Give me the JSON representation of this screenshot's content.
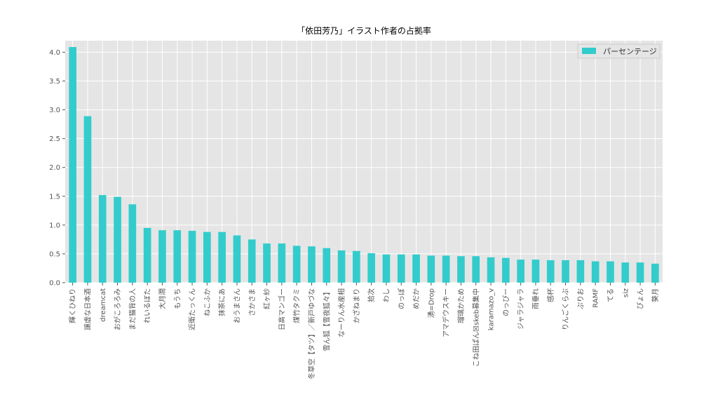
{
  "chart_data": {
    "type": "bar",
    "title": "「依田芳乃」イラスト作者の占拠率",
    "xlabel": "",
    "ylabel": "",
    "ylim": [
      0,
      4.2
    ],
    "yticks": [
      0.0,
      0.5,
      1.0,
      1.5,
      2.0,
      2.5,
      3.0,
      3.5,
      4.0
    ],
    "ytick_labels": [
      "0.0",
      "0.5",
      "1.0",
      "1.5",
      "2.0",
      "2.5",
      "3.0",
      "3.5",
      "4.0"
    ],
    "grid": true,
    "legend_position": "top-right",
    "bar_color": "#33cccc",
    "background_color": "#e5e5e5",
    "categories": [
      "輝くひねり",
      "譲虚な日本酒",
      "dreamcat",
      "おがころろみ",
      "まだ猫背の人",
      "れいるぼた",
      "大月潤",
      "もうち",
      "近衛たっくん",
      "ねこふか",
      "抹茶にあ",
      "おうまさん",
      "さかさま",
      "紅ヶ紗",
      "日高マンゴー",
      "煤竹タクミ",
      "冬草空【タツ】／新戸ゆづな",
      "雪ん狐【雪夜狐々】",
      "なーりん水産相",
      "かざねまり",
      "拾次",
      "わし",
      "のっぽ",
      "めだか",
      "湧=Drop",
      "アマデウスキー",
      "瑠璃かため",
      "こね田ぱん☒skeb募集中",
      "karamazo_v",
      "のっぴー",
      "ジャラジャラ",
      "雨垂れ",
      "感杯",
      "りんごくらぶ",
      "ぷりお",
      "RAMF",
      "てる",
      "siz",
      "ぴょん",
      "葵月"
    ],
    "series": [
      {
        "name": "パーセンテージ",
        "values": [
          4.09,
          2.89,
          1.52,
          1.49,
          1.36,
          0.95,
          0.91,
          0.91,
          0.9,
          0.88,
          0.88,
          0.82,
          0.75,
          0.68,
          0.68,
          0.64,
          0.63,
          0.6,
          0.56,
          0.55,
          0.51,
          0.49,
          0.49,
          0.49,
          0.47,
          0.47,
          0.46,
          0.46,
          0.44,
          0.43,
          0.4,
          0.4,
          0.39,
          0.39,
          0.39,
          0.37,
          0.37,
          0.35,
          0.35,
          0.33
        ]
      }
    ]
  }
}
